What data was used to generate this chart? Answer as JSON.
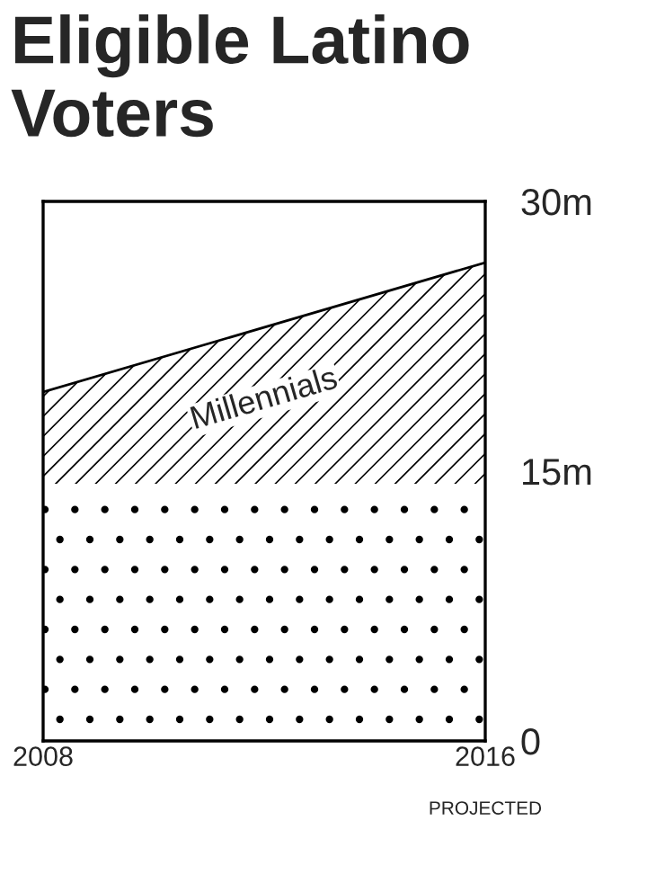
{
  "chart_data": {
    "type": "area",
    "title": "Eligible Latino Voters",
    "stacked": true,
    "x": [
      2008,
      2016
    ],
    "series": [
      {
        "color": "#000000",
        "values": [
          14.3,
          14.3
        ]
      },
      {
        "name": "Millennials",
        "color": "#000000",
        "values": [
          5.1,
          12.3
        ]
      }
    ],
    "xlim": [
      2008,
      2016
    ],
    "xticks": [
      2008,
      2016
    ],
    "ylim": [
      0,
      30
    ],
    "yticks": [
      {
        "value": 0,
        "label": "0"
      },
      {
        "value": 15,
        "label": "15m"
      },
      {
        "value": 30,
        "label": "30m"
      }
    ],
    "annotations": [
      "PROJECTED"
    ]
  }
}
